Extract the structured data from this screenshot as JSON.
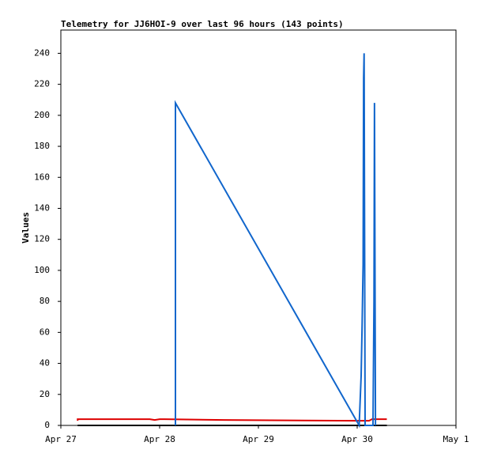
{
  "chart_data": {
    "type": "line",
    "title": "Telemetry for JJ6HOI-9 over last 96 hours (143 points)",
    "y_label": "Values",
    "xlim": [
      0,
      4
    ],
    "xticks": [
      {
        "value": 0,
        "label": "Apr 27"
      },
      {
        "value": 1,
        "label": "Apr 28"
      },
      {
        "value": 2,
        "label": "Apr 29"
      },
      {
        "value": 3,
        "label": "Apr 30"
      },
      {
        "value": 4,
        "label": "May 1"
      }
    ],
    "ylim": [
      0,
      255
    ],
    "yticks": [
      0,
      20,
      40,
      60,
      80,
      100,
      120,
      140,
      160,
      180,
      200,
      220,
      240
    ],
    "series": [
      {
        "color": "#000000",
        "x": [
          0.17,
          3.3
        ],
        "values": [
          0,
          0
        ]
      },
      {
        "color": "#dd0000",
        "x": [
          0.17,
          0.17,
          0.9,
          0.95,
          1.0,
          1.05,
          1.65,
          3.0,
          3.12,
          3.15,
          3.3
        ],
        "values": [
          3,
          4,
          4,
          3.5,
          4,
          4,
          3.5,
          3,
          3,
          4,
          4
        ]
      },
      {
        "color": "#1166cc",
        "x": [
          1.16,
          1.16,
          3.02,
          3.04,
          3.05,
          3.06,
          3.065,
          3.07,
          3.08,
          3.16,
          3.17,
          3.175,
          3.185
        ],
        "values": [
          0,
          208,
          0,
          32,
          65,
          104,
          224,
          240,
          0,
          0,
          80,
          208,
          0
        ]
      }
    ]
  }
}
